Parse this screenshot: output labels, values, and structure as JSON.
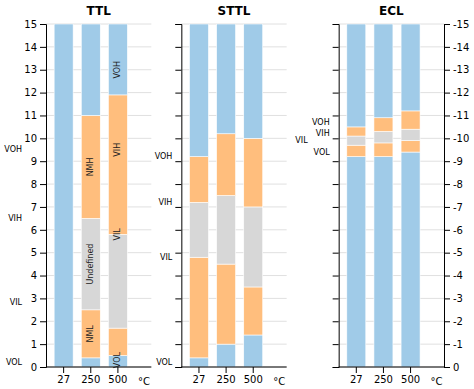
{
  "chart_data": [
    {
      "type": "bar",
      "stacked": true,
      "title": "TTL",
      "categories": [
        "27",
        "250",
        "500"
      ],
      "x_label": "°C",
      "series": [
        {
          "color": "#a0cbe8",
          "values": [
            0,
            0.4,
            0.5
          ]
        },
        {
          "color": "#ffbe7d",
          "values": [
            0,
            2.1,
            1.2
          ]
        },
        {
          "color": "#d7d7d7",
          "values": [
            0,
            4.0,
            4.1
          ]
        },
        {
          "color": "#ffbe7d",
          "values": [
            0,
            4.5,
            6.1
          ]
        },
        {
          "color": "#a0cbe8",
          "values": [
            15,
            4.0,
            3.1
          ]
        }
      ],
      "ylim": [
        0,
        15
      ],
      "yticks": [
        0,
        1,
        2,
        3,
        4,
        5,
        6,
        7,
        8,
        9,
        10,
        11,
        12,
        13,
        14,
        15
      ],
      "grid": true,
      "annotations": [
        {
          "text": "VOH",
          "y": 9.5
        },
        {
          "text": "VIH",
          "y": 6.5
        },
        {
          "text": "VIL",
          "y": 2.8
        },
        {
          "text": "VOL",
          "y": 0.2
        },
        {
          "text": "NMH",
          "x": "250",
          "y": 8.75
        },
        {
          "text": "Undefined",
          "x": "250",
          "y": 4.5
        },
        {
          "text": "NML",
          "x": "250",
          "y": 1.45
        },
        {
          "text": "VOH",
          "x": "500",
          "y": 13.0
        },
        {
          "text": "VIH",
          "x": "500",
          "y": 9.5
        },
        {
          "text": "VIL",
          "x": "500",
          "y": 5.8
        },
        {
          "text": "VOL",
          "x": "500",
          "y": 0.3
        }
      ]
    },
    {
      "type": "bar",
      "stacked": true,
      "title": "STTL",
      "categories": [
        "27",
        "250",
        "500"
      ],
      "x_label": "°C",
      "series": [
        {
          "color": "#a0cbe8",
          "values": [
            0.4,
            1.0,
            1.4
          ]
        },
        {
          "color": "#ffbe7d",
          "values": [
            4.4,
            3.5,
            2.1
          ]
        },
        {
          "color": "#d7d7d7",
          "values": [
            2.4,
            3.0,
            3.5
          ]
        },
        {
          "color": "#ffbe7d",
          "values": [
            2.0,
            2.7,
            3.0
          ]
        },
        {
          "color": "#a0cbe8",
          "values": [
            5.8,
            4.8,
            5.0
          ]
        }
      ],
      "ylim": [
        0,
        15
      ],
      "yticks": [
        0,
        1,
        2,
        3,
        4,
        5,
        6,
        7,
        8,
        9,
        10,
        11,
        12,
        13,
        14,
        15
      ],
      "grid": true,
      "tick_labels": "x",
      "annotations": [
        {
          "text": "VOH",
          "y": 9.2
        },
        {
          "text": "VIH",
          "y": 7.2
        },
        {
          "text": "VIL",
          "y": 4.8
        },
        {
          "text": "VOL",
          "y": 0.2
        }
      ]
    },
    {
      "type": "bar",
      "stacked": true,
      "title": "ECL",
      "categories": [
        "27",
        "250",
        "500"
      ],
      "x_label": "°C",
      "series": [
        {
          "color": "#a0cbe8",
          "values": [
            9.2,
            9.2,
            9.4
          ]
        },
        {
          "color": "#ffbe7d",
          "values": [
            0.5,
            0.6,
            0.5
          ]
        },
        {
          "color": "#d7d7d7",
          "values": [
            0.4,
            0.5,
            0.5
          ]
        },
        {
          "color": "#ffbe7d",
          "values": [
            0.4,
            0.6,
            0.8
          ]
        },
        {
          "color": "#a0cbe8",
          "values": [
            4.5,
            4.1,
            3.8
          ]
        }
      ],
      "ylim": [
        0,
        15
      ],
      "yticks": [
        0,
        1,
        2,
        3,
        4,
        5,
        6,
        7,
        8,
        9,
        10,
        11,
        12,
        13,
        14,
        15
      ],
      "y2lim": [
        0,
        -15
      ],
      "y2ticks": [
        0,
        -1,
        -2,
        -3,
        -4,
        -5,
        -6,
        -7,
        -8,
        -9,
        -10,
        -11,
        -12,
        -13,
        -14,
        -15
      ],
      "grid": true,
      "tick_labels": "x",
      "annotations": [
        {
          "text": "VOH",
          "y": 10.7
        },
        {
          "text": "VIH",
          "y": 10.2
        },
        {
          "text": "VIL",
          "y": 9.9
        },
        {
          "text": "VOL",
          "y": 9.4
        }
      ]
    }
  ]
}
